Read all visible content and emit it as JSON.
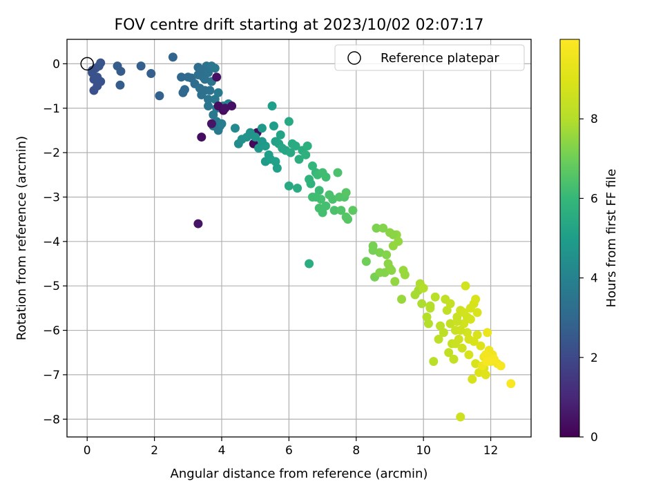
{
  "chart_data": {
    "type": "scatter",
    "title": "FOV centre drift starting at 2023/10/02 02:07:17",
    "xlabel": "Angular distance from reference (arcmin)",
    "ylabel": "Rotation from reference (arcmin)",
    "xlim": [
      -0.6,
      13.2
    ],
    "ylim": [
      -8.4,
      0.55
    ],
    "xticks": [
      0,
      2,
      4,
      6,
      8,
      10,
      12
    ],
    "yticks": [
      0,
      -1,
      -2,
      -3,
      -4,
      -5,
      -6,
      -7,
      -8
    ],
    "grid": true,
    "legend": {
      "position": "top-right",
      "entries": [
        {
          "label": "Reference platepar",
          "marker": "open-circle"
        }
      ]
    },
    "reference_point": {
      "x": 0,
      "y": 0
    },
    "colorbar": {
      "label": "Hours from first FF file",
      "min": 0,
      "max": 10,
      "ticks": [
        0,
        2,
        4,
        6,
        8
      ],
      "colormap": "viridis"
    },
    "points": [
      {
        "x": 0.15,
        "y": -0.2,
        "c": 2.3
      },
      {
        "x": 0.2,
        "y": -0.35,
        "c": 2.3
      },
      {
        "x": 0.25,
        "y": -0.1,
        "c": 2.4
      },
      {
        "x": 0.3,
        "y": -0.3,
        "c": 2.3
      },
      {
        "x": 0.35,
        "y": -0.05,
        "c": 2.4
      },
      {
        "x": 0.4,
        "y": 0.02,
        "c": 2.4
      },
      {
        "x": 0.2,
        "y": -0.6,
        "c": 2.2
      },
      {
        "x": 0.3,
        "y": -0.5,
        "c": 2.3
      },
      {
        "x": 0.4,
        "y": -0.4,
        "c": 2.3
      },
      {
        "x": 0.15,
        "y": -0.15,
        "c": 2.3
      },
      {
        "x": 0.9,
        "y": -0.05,
        "c": 2.6
      },
      {
        "x": 1.0,
        "y": -0.17,
        "c": 2.6
      },
      {
        "x": 0.98,
        "y": -0.48,
        "c": 2.6
      },
      {
        "x": 1.6,
        "y": -0.05,
        "c": 2.7
      },
      {
        "x": 1.9,
        "y": -0.22,
        "c": 2.7
      },
      {
        "x": 2.15,
        "y": -0.72,
        "c": 2.8
      },
      {
        "x": 2.55,
        "y": 0.15,
        "c": 2.9
      },
      {
        "x": 2.8,
        "y": -0.3,
        "c": 3.0
      },
      {
        "x": 2.85,
        "y": -0.65,
        "c": 3.0
      },
      {
        "x": 2.9,
        "y": -0.58,
        "c": 3.0
      },
      {
        "x": 3.0,
        "y": -0.3,
        "c": 3.1
      },
      {
        "x": 3.1,
        "y": -0.32,
        "c": 3.1
      },
      {
        "x": 3.2,
        "y": -0.45,
        "c": 3.2
      },
      {
        "x": 3.3,
        "y": -0.08,
        "c": 3.2
      },
      {
        "x": 3.35,
        "y": -0.55,
        "c": 3.3
      },
      {
        "x": 3.4,
        "y": -0.7,
        "c": 3.3
      },
      {
        "x": 3.45,
        "y": -0.3,
        "c": 3.4
      },
      {
        "x": 3.5,
        "y": -0.6,
        "c": 3.3
      },
      {
        "x": 3.55,
        "y": -0.05,
        "c": 3.4
      },
      {
        "x": 3.6,
        "y": -0.95,
        "c": 3.5
      },
      {
        "x": 3.65,
        "y": -0.6,
        "c": 3.4
      },
      {
        "x": 3.7,
        "y": -0.05,
        "c": 3.5
      },
      {
        "x": 3.75,
        "y": -1.15,
        "c": 3.6
      },
      {
        "x": 3.8,
        "y": -0.8,
        "c": 3.6
      },
      {
        "x": 3.85,
        "y": -1.3,
        "c": 3.6
      },
      {
        "x": 3.9,
        "y": -0.65,
        "c": 3.7
      },
      {
        "x": 3.95,
        "y": -1.4,
        "c": 3.7
      },
      {
        "x": 3.3,
        "y": -0.25,
        "c": 3.3
      },
      {
        "x": 3.4,
        "y": -0.15,
        "c": 3.3
      },
      {
        "x": 3.6,
        "y": -0.2,
        "c": 3.4
      },
      {
        "x": 3.7,
        "y": -0.4,
        "c": 3.5
      },
      {
        "x": 3.5,
        "y": -0.35,
        "c": 3.4
      },
      {
        "x": 3.8,
        "y": -0.1,
        "c": 3.6
      },
      {
        "x": 3.9,
        "y": -1.5,
        "c": 3.7
      },
      {
        "x": 4.0,
        "y": -1.35,
        "c": 3.8
      },
      {
        "x": 4.05,
        "y": -0.95,
        "c": 3.8
      },
      {
        "x": 4.1,
        "y": -1.0,
        "c": 3.9
      },
      {
        "x": 4.2,
        "y": -0.9,
        "c": 3.9
      },
      {
        "x": 3.75,
        "y": -1.4,
        "c": 3.6
      },
      {
        "x": 3.85,
        "y": -1.0,
        "c": 3.7
      },
      {
        "x": 3.6,
        "y": -0.8,
        "c": 3.5
      },
      {
        "x": 3.85,
        "y": -0.3,
        "c": 0.4
      },
      {
        "x": 3.9,
        "y": -0.95,
        "c": 0.3
      },
      {
        "x": 4.3,
        "y": -0.95,
        "c": 0.4
      },
      {
        "x": 3.7,
        "y": -1.35,
        "c": 0.5
      },
      {
        "x": 3.4,
        "y": -1.65,
        "c": 0.3
      },
      {
        "x": 4.05,
        "y": -1.05,
        "c": 0.3
      },
      {
        "x": 4.1,
        "y": -1.0,
        "c": 0.4
      },
      {
        "x": 4.95,
        "y": -1.8,
        "c": 0.2
      },
      {
        "x": 5.05,
        "y": -1.55,
        "c": 0.3
      },
      {
        "x": 3.3,
        "y": -3.6,
        "c": 0.5
      },
      {
        "x": 4.4,
        "y": -1.45,
        "c": 4.3
      },
      {
        "x": 4.5,
        "y": -1.8,
        "c": 4.4
      },
      {
        "x": 4.6,
        "y": -1.7,
        "c": 4.5
      },
      {
        "x": 4.75,
        "y": -1.65,
        "c": 4.6
      },
      {
        "x": 4.85,
        "y": -1.55,
        "c": 4.6
      },
      {
        "x": 5.0,
        "y": -1.65,
        "c": 4.7
      },
      {
        "x": 5.1,
        "y": -1.9,
        "c": 4.8
      },
      {
        "x": 5.2,
        "y": -1.45,
        "c": 4.8
      },
      {
        "x": 5.3,
        "y": -1.85,
        "c": 4.9
      },
      {
        "x": 5.4,
        "y": -2.05,
        "c": 5.0
      },
      {
        "x": 5.5,
        "y": -0.95,
        "c": 5.0
      },
      {
        "x": 5.6,
        "y": -1.75,
        "c": 5.1
      },
      {
        "x": 5.65,
        "y": -2.35,
        "c": 5.1
      },
      {
        "x": 5.7,
        "y": -1.8,
        "c": 5.2
      },
      {
        "x": 5.75,
        "y": -1.6,
        "c": 5.2
      },
      {
        "x": 5.8,
        "y": -1.9,
        "c": 5.3
      },
      {
        "x": 5.9,
        "y": -1.95,
        "c": 5.3
      },
      {
        "x": 6.0,
        "y": -1.3,
        "c": 5.4
      },
      {
        "x": 6.05,
        "y": -2.0,
        "c": 5.4
      },
      {
        "x": 6.1,
        "y": -1.8,
        "c": 5.5
      },
      {
        "x": 6.2,
        "y": -1.85,
        "c": 5.5
      },
      {
        "x": 6.25,
        "y": -2.8,
        "c": 5.5
      },
      {
        "x": 6.3,
        "y": -2.15,
        "c": 5.6
      },
      {
        "x": 6.4,
        "y": -1.95,
        "c": 5.6
      },
      {
        "x": 6.5,
        "y": -2.05,
        "c": 5.7
      },
      {
        "x": 6.55,
        "y": -1.85,
        "c": 5.7
      },
      {
        "x": 6.6,
        "y": -2.6,
        "c": 5.8
      },
      {
        "x": 6.65,
        "y": -2.7,
        "c": 5.8
      },
      {
        "x": 6.7,
        "y": -2.3,
        "c": 5.9
      },
      {
        "x": 6.8,
        "y": -2.45,
        "c": 5.9
      },
      {
        "x": 5.3,
        "y": -2.2,
        "c": 4.9
      },
      {
        "x": 5.45,
        "y": -2.15,
        "c": 5.0
      },
      {
        "x": 5.6,
        "y": -2.2,
        "c": 5.1
      },
      {
        "x": 6.0,
        "y": -2.75,
        "c": 5.4
      },
      {
        "x": 5.55,
        "y": -1.4,
        "c": 5.0
      },
      {
        "x": 5.2,
        "y": -1.75,
        "c": 4.8
      },
      {
        "x": 6.6,
        "y": -4.5,
        "c": 5.6
      },
      {
        "x": 6.85,
        "y": -2.5,
        "c": 6.1
      },
      {
        "x": 6.9,
        "y": -2.85,
        "c": 6.1
      },
      {
        "x": 7.0,
        "y": -2.45,
        "c": 6.2
      },
      {
        "x": 7.1,
        "y": -2.55,
        "c": 6.2
      },
      {
        "x": 6.7,
        "y": -3.0,
        "c": 6.2
      },
      {
        "x": 6.9,
        "y": -3.25,
        "c": 6.3
      },
      {
        "x": 7.0,
        "y": -3.35,
        "c": 6.3
      },
      {
        "x": 7.1,
        "y": -3.2,
        "c": 6.3
      },
      {
        "x": 7.3,
        "y": -3.05,
        "c": 6.4
      },
      {
        "x": 7.35,
        "y": -3.3,
        "c": 6.4
      },
      {
        "x": 7.5,
        "y": -3.0,
        "c": 6.5
      },
      {
        "x": 7.55,
        "y": -3.3,
        "c": 6.5
      },
      {
        "x": 7.65,
        "y": -3.0,
        "c": 6.5
      },
      {
        "x": 7.7,
        "y": -2.9,
        "c": 6.6
      },
      {
        "x": 7.75,
        "y": -3.5,
        "c": 6.6
      },
      {
        "x": 7.9,
        "y": -3.3,
        "c": 6.7
      },
      {
        "x": 7.45,
        "y": -2.45,
        "c": 6.4
      },
      {
        "x": 7.2,
        "y": -2.95,
        "c": 6.4
      },
      {
        "x": 6.95,
        "y": -3.05,
        "c": 6.3
      },
      {
        "x": 6.8,
        "y": -3.0,
        "c": 6.2
      },
      {
        "x": 7.7,
        "y": -3.45,
        "c": 6.6
      },
      {
        "x": 8.3,
        "y": -4.45,
        "c": 7.0
      },
      {
        "x": 8.5,
        "y": -4.1,
        "c": 7.1
      },
      {
        "x": 8.55,
        "y": -4.8,
        "c": 7.1
      },
      {
        "x": 8.6,
        "y": -3.7,
        "c": 7.2
      },
      {
        "x": 8.7,
        "y": -4.25,
        "c": 7.2
      },
      {
        "x": 8.8,
        "y": -3.7,
        "c": 7.3
      },
      {
        "x": 8.85,
        "y": -4.7,
        "c": 7.3
      },
      {
        "x": 8.9,
        "y": -4.3,
        "c": 7.3
      },
      {
        "x": 8.95,
        "y": -4.5,
        "c": 7.4
      },
      {
        "x": 9.0,
        "y": -3.8,
        "c": 7.4
      },
      {
        "x": 9.05,
        "y": -4.65,
        "c": 7.4
      },
      {
        "x": 9.1,
        "y": -4.1,
        "c": 7.5
      },
      {
        "x": 9.15,
        "y": -4.9,
        "c": 7.5
      },
      {
        "x": 9.2,
        "y": -3.85,
        "c": 7.5
      },
      {
        "x": 9.25,
        "y": -4.0,
        "c": 7.5
      },
      {
        "x": 9.35,
        "y": -5.3,
        "c": 7.6
      },
      {
        "x": 9.45,
        "y": -4.75,
        "c": 7.6
      },
      {
        "x": 9.4,
        "y": -4.65,
        "c": 7.6
      },
      {
        "x": 8.5,
        "y": -4.2,
        "c": 7.1
      },
      {
        "x": 9.0,
        "y": -4.6,
        "c": 7.4
      },
      {
        "x": 9.1,
        "y": -3.85,
        "c": 7.4
      },
      {
        "x": 8.7,
        "y": -4.7,
        "c": 7.3
      },
      {
        "x": 9.75,
        "y": -5.2,
        "c": 7.8
      },
      {
        "x": 9.85,
        "y": -5.1,
        "c": 7.8
      },
      {
        "x": 9.9,
        "y": -4.95,
        "c": 7.9
      },
      {
        "x": 9.95,
        "y": -5.4,
        "c": 7.9
      },
      {
        "x": 10.0,
        "y": -5.05,
        "c": 8.0
      },
      {
        "x": 10.1,
        "y": -5.7,
        "c": 8.0
      },
      {
        "x": 10.15,
        "y": -5.85,
        "c": 8.0
      },
      {
        "x": 10.2,
        "y": -5.5,
        "c": 8.1
      },
      {
        "x": 10.3,
        "y": -6.7,
        "c": 8.1
      },
      {
        "x": 10.35,
        "y": -5.25,
        "c": 8.1
      },
      {
        "x": 10.45,
        "y": -6.2,
        "c": 8.2
      },
      {
        "x": 10.5,
        "y": -5.9,
        "c": 8.2
      },
      {
        "x": 10.6,
        "y": -6.05,
        "c": 8.2
      },
      {
        "x": 10.65,
        "y": -5.3,
        "c": 8.3
      },
      {
        "x": 10.7,
        "y": -5.55,
        "c": 8.3
      },
      {
        "x": 10.75,
        "y": -6.5,
        "c": 8.3
      },
      {
        "x": 10.8,
        "y": -5.85,
        "c": 8.4
      },
      {
        "x": 10.85,
        "y": -6.3,
        "c": 8.4
      },
      {
        "x": 10.9,
        "y": -6.65,
        "c": 8.4
      },
      {
        "x": 10.95,
        "y": -6.0,
        "c": 8.5
      },
      {
        "x": 11.0,
        "y": -5.7,
        "c": 8.5
      },
      {
        "x": 11.05,
        "y": -6.2,
        "c": 8.6
      },
      {
        "x": 11.1,
        "y": -5.55,
        "c": 8.6
      },
      {
        "x": 11.15,
        "y": -6.4,
        "c": 8.6
      },
      {
        "x": 11.2,
        "y": -5.85,
        "c": 8.7
      },
      {
        "x": 11.25,
        "y": -5.0,
        "c": 8.7
      },
      {
        "x": 11.3,
        "y": -6.05,
        "c": 8.7
      },
      {
        "x": 11.35,
        "y": -6.55,
        "c": 8.8
      },
      {
        "x": 11.4,
        "y": -5.75,
        "c": 8.8
      },
      {
        "x": 11.45,
        "y": -7.1,
        "c": 8.8
      },
      {
        "x": 11.5,
        "y": -6.25,
        "c": 8.9
      },
      {
        "x": 11.55,
        "y": -6.75,
        "c": 8.9
      },
      {
        "x": 11.6,
        "y": -5.6,
        "c": 8.9
      },
      {
        "x": 11.65,
        "y": -6.95,
        "c": 9.0
      },
      {
        "x": 11.7,
        "y": -6.35,
        "c": 9.0
      },
      {
        "x": 11.8,
        "y": -6.85,
        "c": 9.0
      },
      {
        "x": 11.85,
        "y": -7.0,
        "c": 9.1
      },
      {
        "x": 11.1,
        "y": -7.95,
        "c": 8.6
      },
      {
        "x": 10.2,
        "y": -5.45,
        "c": 8.0
      },
      {
        "x": 11.2,
        "y": -5.6,
        "c": 8.7
      },
      {
        "x": 11.3,
        "y": -5.7,
        "c": 8.7
      },
      {
        "x": 11.4,
        "y": -5.5,
        "c": 8.8
      },
      {
        "x": 11.5,
        "y": -5.4,
        "c": 8.8
      },
      {
        "x": 11.0,
        "y": -5.8,
        "c": 8.5
      },
      {
        "x": 10.95,
        "y": -6.3,
        "c": 8.5
      },
      {
        "x": 11.6,
        "y": -6.1,
        "c": 8.9
      },
      {
        "x": 10.8,
        "y": -5.4,
        "c": 8.4
      },
      {
        "x": 11.35,
        "y": -6.2,
        "c": 8.8
      },
      {
        "x": 11.55,
        "y": -5.3,
        "c": 8.9
      },
      {
        "x": 11.1,
        "y": -6.0,
        "c": 8.6
      },
      {
        "x": 11.9,
        "y": -6.05,
        "c": 9.4
      },
      {
        "x": 11.95,
        "y": -6.45,
        "c": 9.5
      },
      {
        "x": 12.0,
        "y": -6.7,
        "c": 9.6
      },
      {
        "x": 12.05,
        "y": -6.55,
        "c": 9.6
      },
      {
        "x": 11.8,
        "y": -6.6,
        "c": 9.5
      },
      {
        "x": 11.75,
        "y": -6.8,
        "c": 9.5
      },
      {
        "x": 12.2,
        "y": -6.75,
        "c": 9.7
      },
      {
        "x": 12.3,
        "y": -6.8,
        "c": 9.8
      },
      {
        "x": 12.6,
        "y": -7.2,
        "c": 9.9
      },
      {
        "x": 11.85,
        "y": -6.55,
        "c": 9.7
      },
      {
        "x": 11.9,
        "y": -6.7,
        "c": 9.8
      },
      {
        "x": 12.1,
        "y": -6.65,
        "c": 9.8
      }
    ]
  }
}
